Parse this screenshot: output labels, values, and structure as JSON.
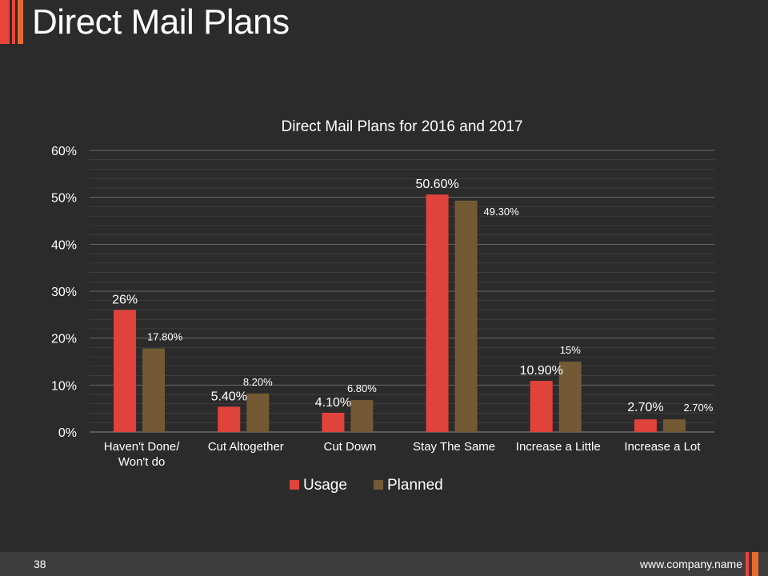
{
  "slide": {
    "title": "Direct Mail Plans",
    "page_number": "38",
    "website": "www.company.name"
  },
  "colors": {
    "background": "#2b2b2b",
    "usage": "#e0433b",
    "planned": "#735a35",
    "gridline": "#555555",
    "text": "#ffffff"
  },
  "chart_data": {
    "type": "bar",
    "title": "Direct Mail Plans for 2016 and 2017",
    "categories": [
      [
        "Haven't Done/",
        "Won't do"
      ],
      [
        "Cut Altogether"
      ],
      [
        "Cut Down"
      ],
      [
        "Stay The Same"
      ],
      [
        "Increase a Little"
      ],
      [
        "Increase a Lot"
      ]
    ],
    "series": [
      {
        "name": "Usage",
        "values": [
          26,
          5.4,
          4.1,
          50.6,
          10.9,
          2.7
        ],
        "labels": [
          "26%",
          "5.40%",
          "4.10%",
          "50.60%",
          "10.90%",
          "2.70%"
        ]
      },
      {
        "name": "Planned",
        "values": [
          17.8,
          8.2,
          6.8,
          49.3,
          15,
          2.7
        ],
        "labels": [
          "17.80%",
          "8.20%",
          "6.80%",
          "49.30%",
          "15%",
          "2.70%"
        ]
      }
    ],
    "ylim": [
      0,
      60
    ],
    "yticks": [
      "0%",
      "10%",
      "20%",
      "30%",
      "40%",
      "50%",
      "60%"
    ],
    "xlabel": "",
    "ylabel": "",
    "grid": true,
    "legend": "bottom"
  }
}
